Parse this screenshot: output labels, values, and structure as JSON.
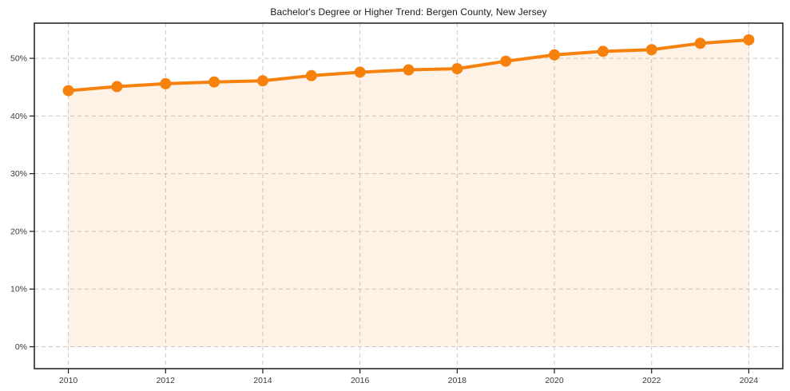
{
  "figure": {
    "title": "Bachelor's Degree or Higher Trend: Bergen County, New Jersey"
  },
  "chart_data": {
    "type": "line",
    "title": "Bachelor's Degree or Higher Trend: Bergen County, New Jersey",
    "xlabel": "",
    "ylabel": "",
    "unit": "%",
    "x": [
      2010,
      2011,
      2012,
      2013,
      2014,
      2015,
      2016,
      2017,
      2018,
      2019,
      2020,
      2021,
      2022,
      2023,
      2024
    ],
    "values": [
      44.4,
      45.1,
      45.6,
      45.9,
      46.1,
      47.0,
      47.6,
      48.0,
      48.2,
      49.5,
      50.6,
      51.2,
      51.5,
      52.6,
      53.2
    ],
    "area_fill_to_zero": true,
    "markers": "circle",
    "grid": true,
    "grid_style": "dashed",
    "legend": "none",
    "xlim": [
      2009.3,
      2024.7
    ],
    "ylim": [
      -3.8,
      56.1
    ],
    "x_ticks": [
      2010,
      2012,
      2014,
      2016,
      2018,
      2020,
      2022,
      2024
    ],
    "y_ticks": [
      0,
      10,
      20,
      30,
      40,
      50
    ],
    "y_tick_labels": [
      "0%",
      "10%",
      "20%",
      "30%",
      "40%",
      "50%"
    ],
    "colors": {
      "line": "#f6820d",
      "marker": "#f6820d",
      "area_fill": "rgba(246,130,13,0.10)",
      "grid": "#c9c9c9",
      "axis": "#1a1a1a",
      "tick_label": "#3a3a3a",
      "title": "#1a1a1a",
      "background": "#ffffff"
    }
  }
}
